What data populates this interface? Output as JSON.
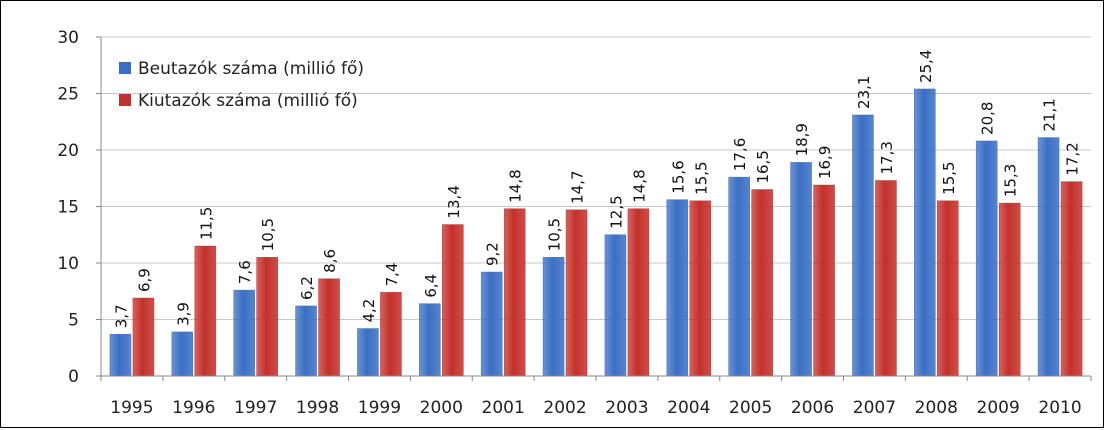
{
  "chart_data": {
    "type": "bar",
    "categories": [
      "1995",
      "1996",
      "1997",
      "1998",
      "1999",
      "2000",
      "2001",
      "2002",
      "2003",
      "2004",
      "2005",
      "2006",
      "2007",
      "2008",
      "2009",
      "2010"
    ],
    "series": [
      {
        "name": "Beutazók száma (millió fő)",
        "color": "#3a6fc4",
        "values": [
          3.7,
          3.9,
          7.6,
          6.2,
          4.2,
          6.4,
          9.2,
          10.5,
          12.5,
          15.6,
          17.6,
          18.9,
          23.1,
          25.4,
          20.8,
          21.1
        ],
        "labels": [
          "3,7",
          "3,9",
          "7,6",
          "6,2",
          "4,2",
          "6,4",
          "9,2",
          "10,5",
          "12,5",
          "15,6",
          "17,6",
          "18,9",
          "23,1",
          "25,4",
          "20,8",
          "21,1"
        ]
      },
      {
        "name": "Kiutazók száma (millió fő)",
        "color": "#c4302b",
        "values": [
          6.9,
          11.5,
          10.5,
          8.6,
          7.4,
          13.4,
          14.8,
          14.7,
          14.8,
          15.5,
          16.5,
          16.9,
          17.3,
          15.5,
          15.3,
          17.2
        ],
        "labels": [
          "6,9",
          "11,5",
          "10,5",
          "8,6",
          "7,4",
          "13,4",
          "14,8",
          "14,7",
          "14,8",
          "15,5",
          "16,5",
          "16,9",
          "17,3",
          "15,5",
          "15,3",
          "17,2"
        ]
      }
    ],
    "ylim": [
      0,
      30
    ],
    "yticks": [
      "0",
      "5",
      "10",
      "15",
      "20",
      "25",
      "30"
    ],
    "grid": true,
    "legend_position": "top-left"
  }
}
